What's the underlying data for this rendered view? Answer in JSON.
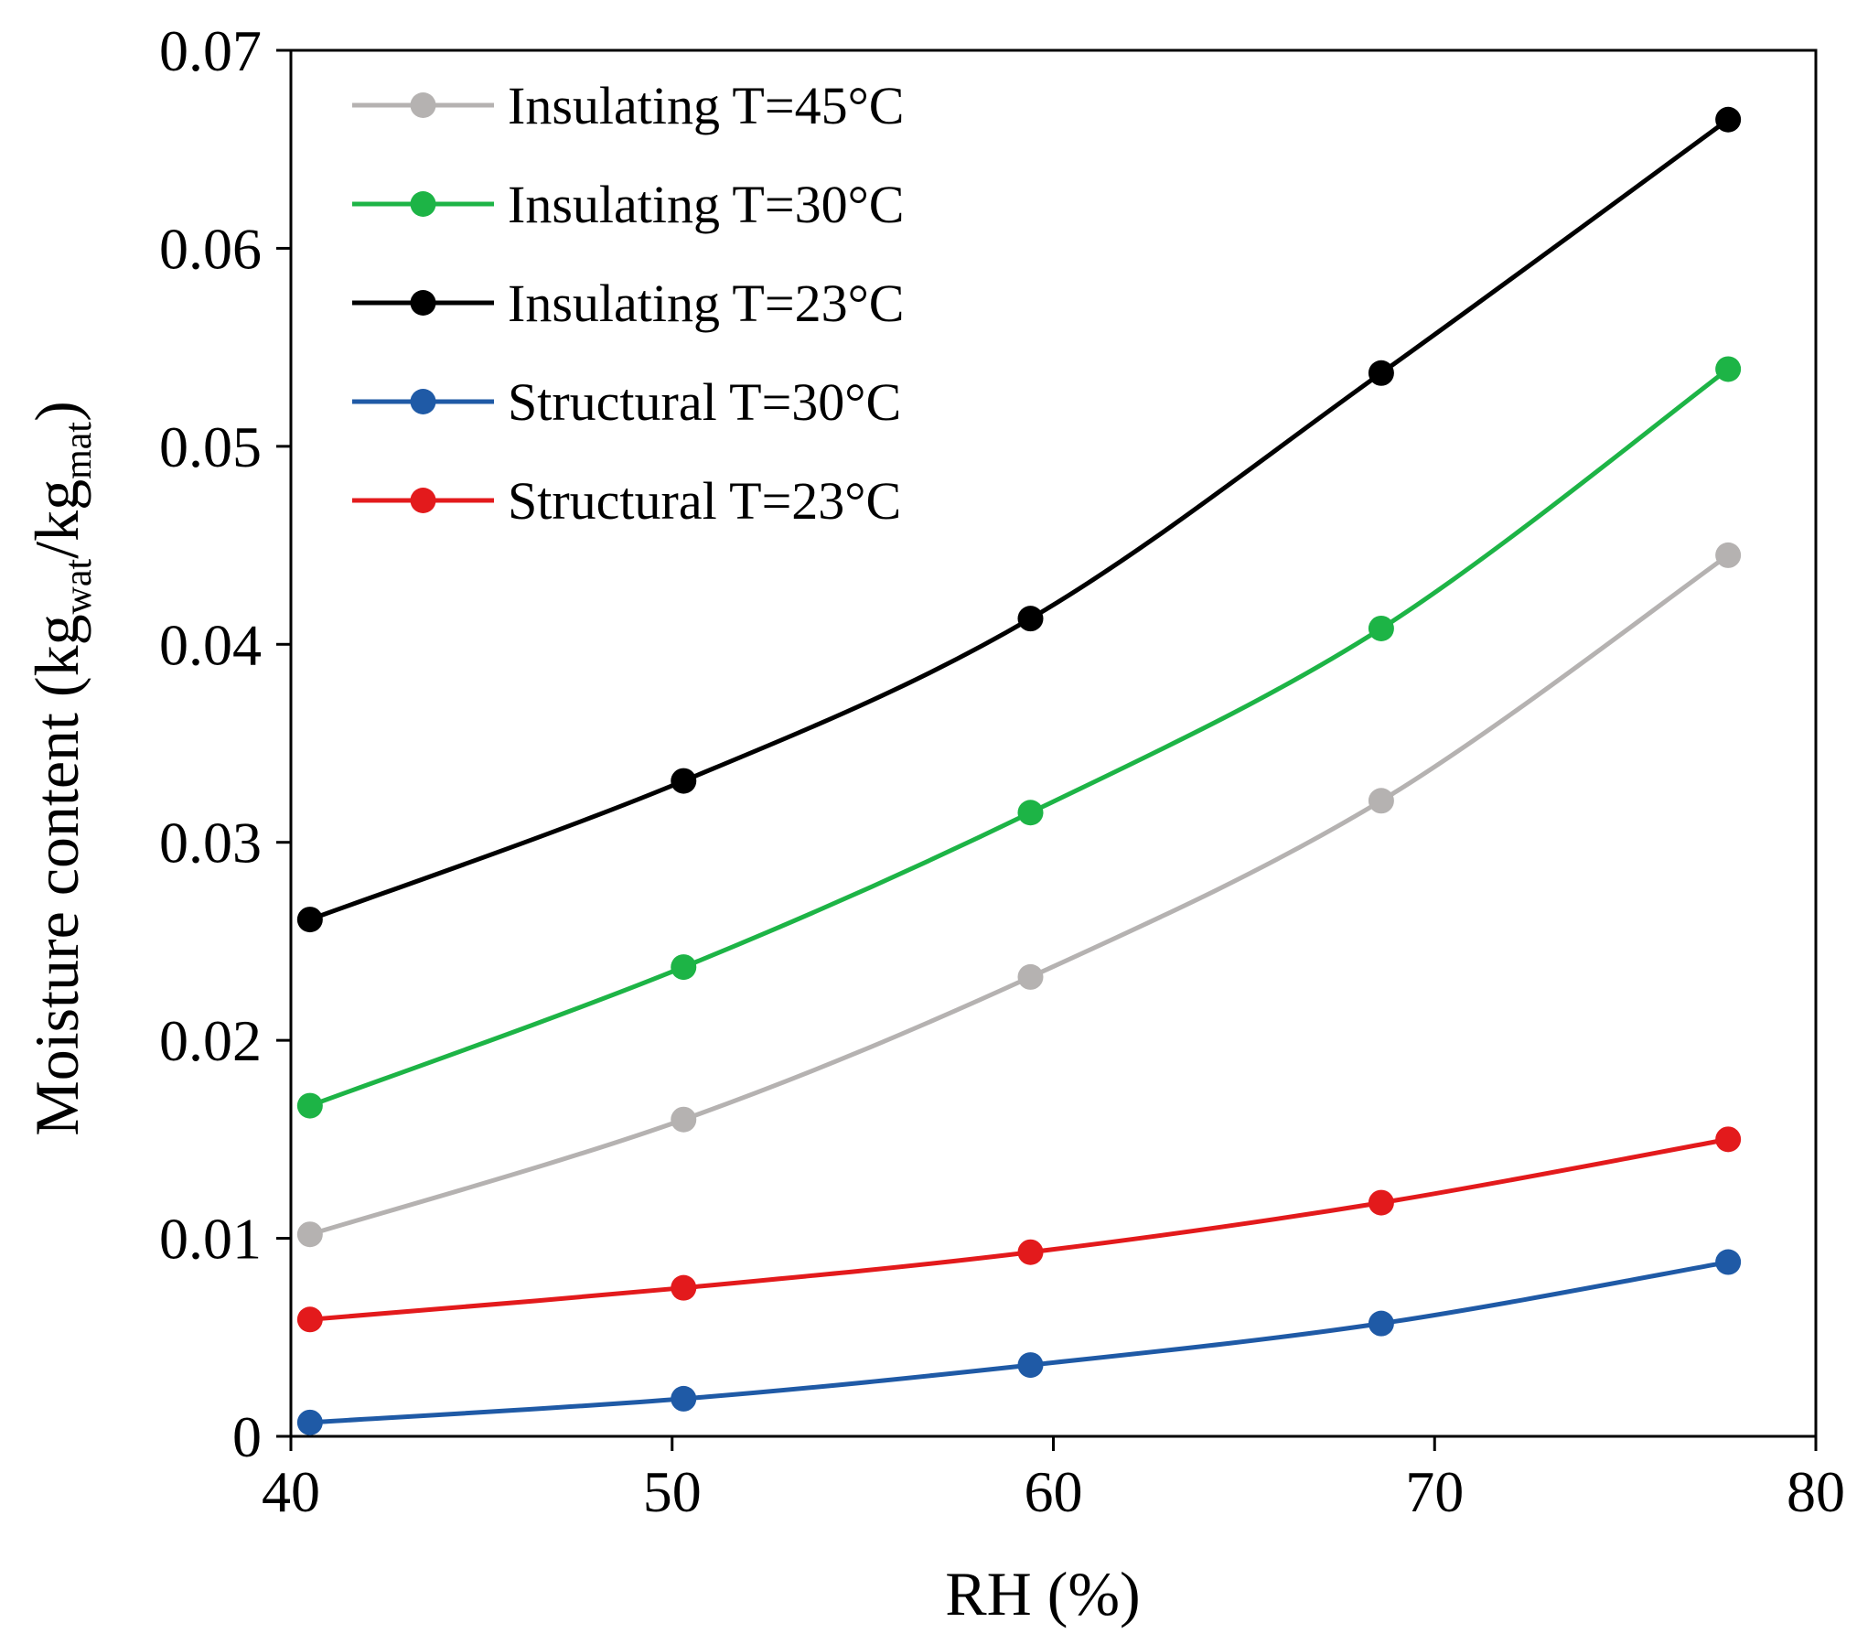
{
  "chart_data": {
    "type": "line",
    "title": "",
    "xlabel": "RH (%)",
    "ylabel": {
      "main": "Moisture content (kg",
      "sub1": "wat",
      "mid": "/kg",
      "sub2": "mat",
      "end": ")"
    },
    "xlim": [
      40,
      80
    ],
    "ylim": [
      0,
      0.07
    ],
    "x_ticks": [
      40,
      50,
      60,
      70,
      80
    ],
    "x_tick_labels": [
      "40",
      "50",
      "60",
      "70",
      "80"
    ],
    "y_ticks": [
      0,
      0.01,
      0.02,
      0.03,
      0.04,
      0.05,
      0.06,
      0.07
    ],
    "y_tick_labels": [
      "0",
      "0.01",
      "0.02",
      "0.03",
      "0.04",
      "0.05",
      "0.06",
      "0.07"
    ],
    "grid": false,
    "legend_position": "top-left",
    "x": [
      40.5,
      50.3,
      59.4,
      68.6,
      77.7
    ],
    "series": [
      {
        "name": "Insulating T=45°C",
        "color": "#b5b2b1",
        "values": [
          0.0102,
          0.016,
          0.0232,
          0.0321,
          0.0445
        ]
      },
      {
        "name": "Insulating T=30°C",
        "color": "#1db446",
        "values": [
          0.0167,
          0.0237,
          0.0315,
          0.0408,
          0.0539
        ]
      },
      {
        "name": "Insulating T=23°C",
        "color": "#000000",
        "values": [
          0.0261,
          0.0331,
          0.0413,
          0.0537,
          0.0665
        ]
      },
      {
        "name": "Structural T=30°C",
        "color": "#1f5aa6",
        "values": [
          0.0007,
          0.0019,
          0.0036,
          0.0057,
          0.0088
        ]
      },
      {
        "name": "Structural T=23°C",
        "color": "#e31a1c",
        "values": [
          0.0059,
          0.0075,
          0.0093,
          0.0118,
          0.015
        ]
      }
    ]
  }
}
